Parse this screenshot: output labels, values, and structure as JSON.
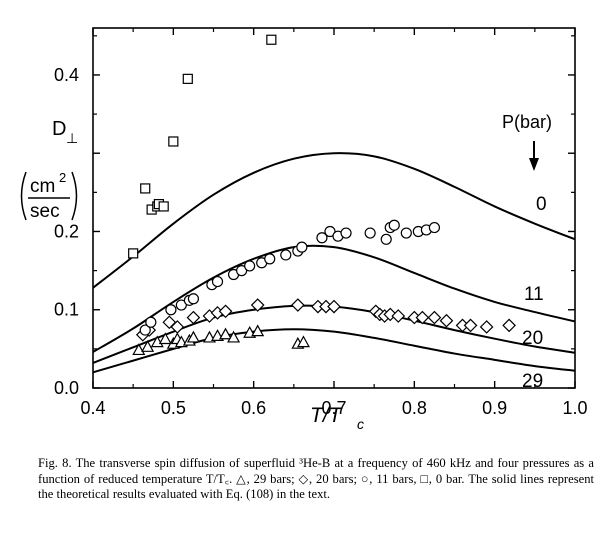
{
  "chart_data": {
    "type": "scatter",
    "xlabel": "T/T",
    "xlabel_sub": "c",
    "ylabel": "D",
    "ylabel_sub": "⊥",
    "yunit_num": "cm",
    "yunit_exp": "2",
    "yunit_den": "sec",
    "xlim": [
      0.4,
      1.0
    ],
    "ylim": [
      0.0,
      0.46
    ],
    "xticks": [
      0.4,
      0.5,
      0.6,
      0.7,
      0.8,
      0.9,
      1.0
    ],
    "xtick_labels": [
      "0.4",
      "0.5",
      "0.6",
      "0.7",
      "0.8",
      "0.9",
      "1.0"
    ],
    "yticks": [
      0.0,
      0.1,
      0.2,
      0.3,
      0.4
    ],
    "ytick_labels": [
      "0.0",
      "0.1",
      "0.2",
      "",
      "0.4"
    ],
    "grid": false,
    "legend_title": "P(bar)",
    "curve_labels": [
      "0",
      "11",
      "20",
      "29"
    ],
    "series": [
      {
        "marker": "triangle",
        "x": [
          0.457,
          0.468,
          0.48,
          0.49,
          0.5,
          0.505,
          0.51,
          0.52,
          0.525,
          0.545,
          0.555,
          0.565,
          0.575,
          0.595,
          0.605,
          0.655,
          0.662
        ],
        "y": [
          0.048,
          0.052,
          0.058,
          0.062,
          0.056,
          0.062,
          0.058,
          0.06,
          0.064,
          0.064,
          0.066,
          0.068,
          0.064,
          0.07,
          0.072,
          0.056,
          0.058
        ]
      },
      {
        "marker": "diamond",
        "x": [
          0.462,
          0.47,
          0.495,
          0.505,
          0.525,
          0.545,
          0.555,
          0.565,
          0.605,
          0.655,
          0.68,
          0.69,
          0.7,
          0.752,
          0.757,
          0.763,
          0.77,
          0.78,
          0.8,
          0.81,
          0.825,
          0.84,
          0.86,
          0.87,
          0.89,
          0.918
        ],
        "y": [
          0.068,
          0.074,
          0.084,
          0.078,
          0.09,
          0.092,
          0.096,
          0.098,
          0.106,
          0.106,
          0.104,
          0.104,
          0.104,
          0.098,
          0.094,
          0.092,
          0.094,
          0.092,
          0.09,
          0.09,
          0.09,
          0.086,
          0.08,
          0.08,
          0.078,
          0.08
        ]
      },
      {
        "marker": "circle",
        "x": [
          0.465,
          0.472,
          0.497,
          0.51,
          0.52,
          0.525,
          0.548,
          0.555,
          0.575,
          0.585,
          0.595,
          0.61,
          0.62,
          0.64,
          0.655,
          0.66,
          0.685,
          0.695,
          0.705,
          0.715,
          0.745,
          0.765,
          0.77,
          0.775,
          0.79,
          0.805,
          0.815,
          0.825
        ],
        "y": [
          0.074,
          0.084,
          0.1,
          0.106,
          0.112,
          0.114,
          0.132,
          0.136,
          0.145,
          0.15,
          0.156,
          0.16,
          0.165,
          0.17,
          0.175,
          0.18,
          0.192,
          0.2,
          0.194,
          0.198,
          0.198,
          0.19,
          0.205,
          0.208,
          0.198,
          0.2,
          0.202,
          0.205
        ]
      },
      {
        "marker": "square",
        "x": [
          0.45,
          0.465,
          0.473,
          0.48,
          0.482,
          0.488,
          0.5,
          0.518,
          0.622
        ],
        "y": [
          0.172,
          0.255,
          0.228,
          0.232,
          0.235,
          0.232,
          0.315,
          0.395,
          0.445
        ]
      }
    ],
    "curves": [
      {
        "x": [
          0.4,
          0.45,
          0.5,
          0.55,
          0.6,
          0.65,
          0.7,
          0.75,
          0.8,
          0.85,
          0.9,
          0.95,
          1.0
        ],
        "y": [
          0.128,
          0.168,
          0.21,
          0.247,
          0.275,
          0.293,
          0.3,
          0.296,
          0.28,
          0.257,
          0.232,
          0.21,
          0.19
        ]
      },
      {
        "x": [
          0.4,
          0.45,
          0.5,
          0.55,
          0.6,
          0.65,
          0.7,
          0.75,
          0.8,
          0.85,
          0.9,
          0.95,
          1.0
        ],
        "y": [
          0.046,
          0.076,
          0.11,
          0.141,
          0.165,
          0.18,
          0.18,
          0.167,
          0.147,
          0.127,
          0.11,
          0.097,
          0.085
        ]
      },
      {
        "x": [
          0.4,
          0.45,
          0.5,
          0.55,
          0.6,
          0.65,
          0.7,
          0.75,
          0.8,
          0.85,
          0.9,
          0.95,
          1.0
        ],
        "y": [
          0.032,
          0.052,
          0.072,
          0.09,
          0.1,
          0.105,
          0.104,
          0.097,
          0.086,
          0.074,
          0.063,
          0.053,
          0.045
        ]
      },
      {
        "x": [
          0.4,
          0.45,
          0.5,
          0.55,
          0.6,
          0.65,
          0.7,
          0.75,
          0.8,
          0.85,
          0.9,
          0.95,
          1.0
        ],
        "y": [
          0.02,
          0.035,
          0.05,
          0.064,
          0.072,
          0.075,
          0.072,
          0.064,
          0.054,
          0.044,
          0.036,
          0.028,
          0.022
        ]
      }
    ]
  },
  "caption": {
    "text": "Fig. 8.  The transverse spin diffusion of superfluid ³He-B at a frequency of 460 kHz and four pressures as a function of reduced temperature T/T꜀. △, 29 bars; ◇, 20 bars; ○, 11 bars, □, 0 bar. The solid lines represent the theoretical results evaluated with Eq. (108) in the text."
  }
}
